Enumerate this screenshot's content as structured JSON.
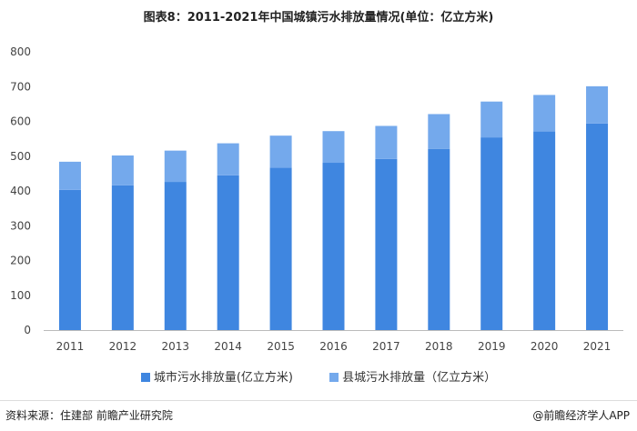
{
  "chart_data": {
    "type": "bar",
    "stacked": true,
    "title": "图表8：2011-2021年中国城镇污水排放量情况(单位：亿立方米)",
    "categories": [
      "2011",
      "2012",
      "2013",
      "2014",
      "2015",
      "2016",
      "2017",
      "2018",
      "2019",
      "2020",
      "2021"
    ],
    "series": [
      {
        "name": "城市污水排放量(亿立方米)",
        "color": "#3f86e0",
        "values": [
          403,
          416,
          426,
          445,
          467,
          481,
          492,
          521,
          554,
          571,
          594
        ]
      },
      {
        "name": "县城污水排放量（亿立方米）",
        "color": "#74a9ec",
        "values": [
          81,
          86,
          90,
          92,
          92,
          91,
          95,
          100,
          103,
          105,
          107
        ]
      }
    ],
    "ylim": [
      0,
      800
    ],
    "yticks": [
      0,
      100,
      200,
      300,
      400,
      500,
      600,
      700,
      800
    ],
    "grid": false,
    "legend": "bottom"
  },
  "footer": {
    "source": "资料来源：住建部 前瞻产业研究院",
    "brand": "@前瞻经济学人APP"
  },
  "watermark": "前瞻产业研究院"
}
